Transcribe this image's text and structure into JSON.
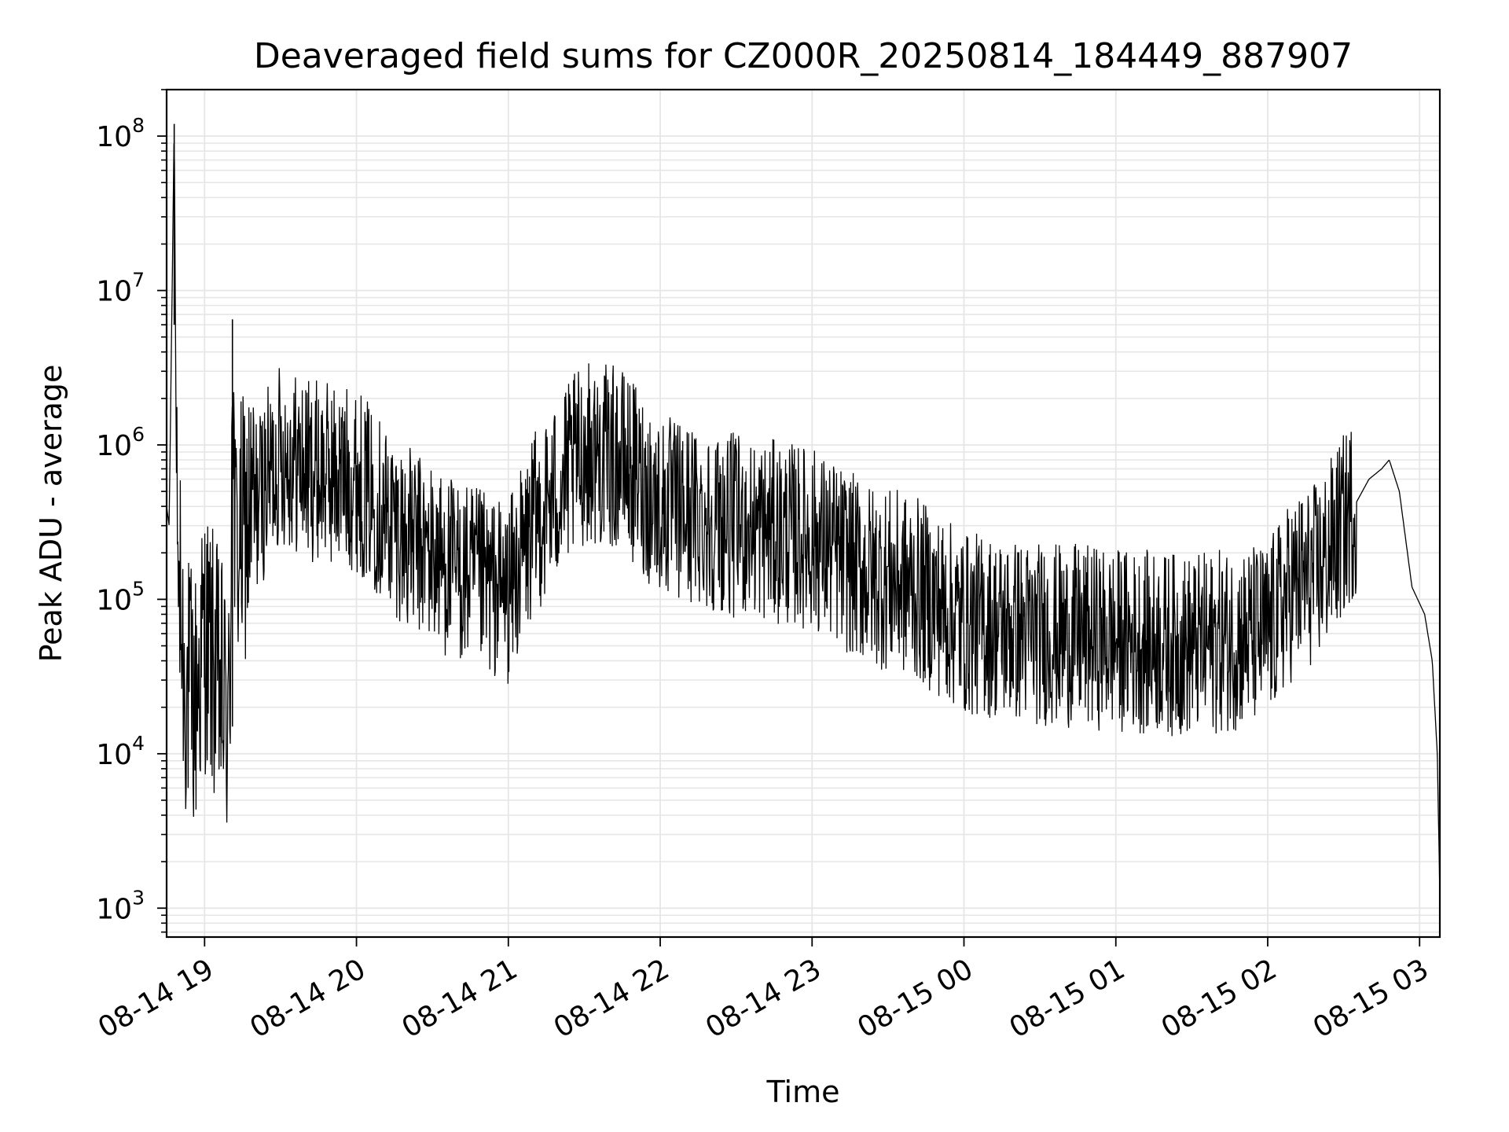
{
  "chart_data": {
    "type": "line",
    "title": "Deaveraged field sums for CZ000R_20250814_184449_887907",
    "xlabel": "Time",
    "ylabel": "Peak ADU - average",
    "yscale": "log",
    "ylim": [
      650,
      200000000
    ],
    "xlim": [
      "2025-08-14 18:45",
      "2025-08-15 03:08"
    ],
    "grid": true,
    "legend": "none",
    "line_color": "#000000",
    "grid_color": "#e6e6e6",
    "x_ticks": [
      {
        "t": "2025-08-14 19:00",
        "label": "08-14 19"
      },
      {
        "t": "2025-08-14 20:00",
        "label": "08-14 20"
      },
      {
        "t": "2025-08-14 21:00",
        "label": "08-14 21"
      },
      {
        "t": "2025-08-14 22:00",
        "label": "08-14 22"
      },
      {
        "t": "2025-08-14 23:00",
        "label": "08-14 23"
      },
      {
        "t": "2025-08-15 00:00",
        "label": "08-15 00"
      },
      {
        "t": "2025-08-15 01:00",
        "label": "08-15 01"
      },
      {
        "t": "2025-08-15 02:00",
        "label": "08-15 02"
      },
      {
        "t": "2025-08-15 03:00",
        "label": "08-15 03"
      }
    ],
    "y_ticks": [
      {
        "value": 1000,
        "base": "10",
        "exp": "3"
      },
      {
        "value": 10000,
        "base": "10",
        "exp": "4"
      },
      {
        "value": 100000,
        "base": "10",
        "exp": "5"
      },
      {
        "value": 1000000,
        "base": "10",
        "exp": "6"
      },
      {
        "value": 10000000,
        "base": "10",
        "exp": "7"
      },
      {
        "value": 100000000,
        "base": "10",
        "exp": "8"
      }
    ],
    "series": [
      {
        "x": [
          "2025-08-14 18:45",
          "2025-08-14 18:46",
          "2025-08-14 18:48",
          "2025-08-14 18:49",
          "2025-08-14 18:50",
          "2025-08-14 18:51",
          "2025-08-14 18:52",
          "2025-08-14 18:54",
          "2025-08-14 18:56",
          "2025-08-14 19:00",
          "2025-08-14 19:05",
          "2025-08-14 19:10",
          "2025-08-14 19:11",
          "2025-08-14 19:12",
          "2025-08-14 19:14",
          "2025-08-14 19:20",
          "2025-08-14 19:30",
          "2025-08-14 19:40",
          "2025-08-14 20:00",
          "2025-08-14 20:20",
          "2025-08-14 20:40",
          "2025-08-14 21:00",
          "2025-08-14 21:10",
          "2025-08-14 21:30",
          "2025-08-14 21:45",
          "2025-08-14 22:00",
          "2025-08-14 22:30",
          "2025-08-14 23:00",
          "2025-08-14 23:20",
          "2025-08-14 23:40",
          "2025-08-15 00:00",
          "2025-08-15 00:30",
          "2025-08-15 01:00",
          "2025-08-15 01:30",
          "2025-08-15 02:00",
          "2025-08-15 02:10",
          "2025-08-15 02:20",
          "2025-08-15 02:30",
          "2025-08-15 02:40",
          "2025-08-15 02:45",
          "2025-08-15 02:48",
          "2025-08-15 02:52",
          "2025-08-15 02:57",
          "2025-08-15 03:02",
          "2025-08-15 03:05",
          "2025-08-15 03:07",
          "2025-08-15 03:08"
        ],
        "y": [
          400000,
          300000,
          120000000,
          300000,
          100000,
          60000,
          30000,
          25000,
          20000,
          60000,
          30000,
          15000,
          6500000,
          200000,
          250000,
          400000,
          900000,
          700000,
          600000,
          250000,
          150000,
          110000,
          300000,
          900000,
          800000,
          400000,
          300000,
          250000,
          150000,
          120000,
          70000,
          60000,
          55000,
          50000,
          60000,
          120000,
          150000,
          300000,
          600000,
          700000,
          800000,
          500000,
          120000,
          80000,
          40000,
          10000,
          1200
        ]
      }
    ]
  }
}
